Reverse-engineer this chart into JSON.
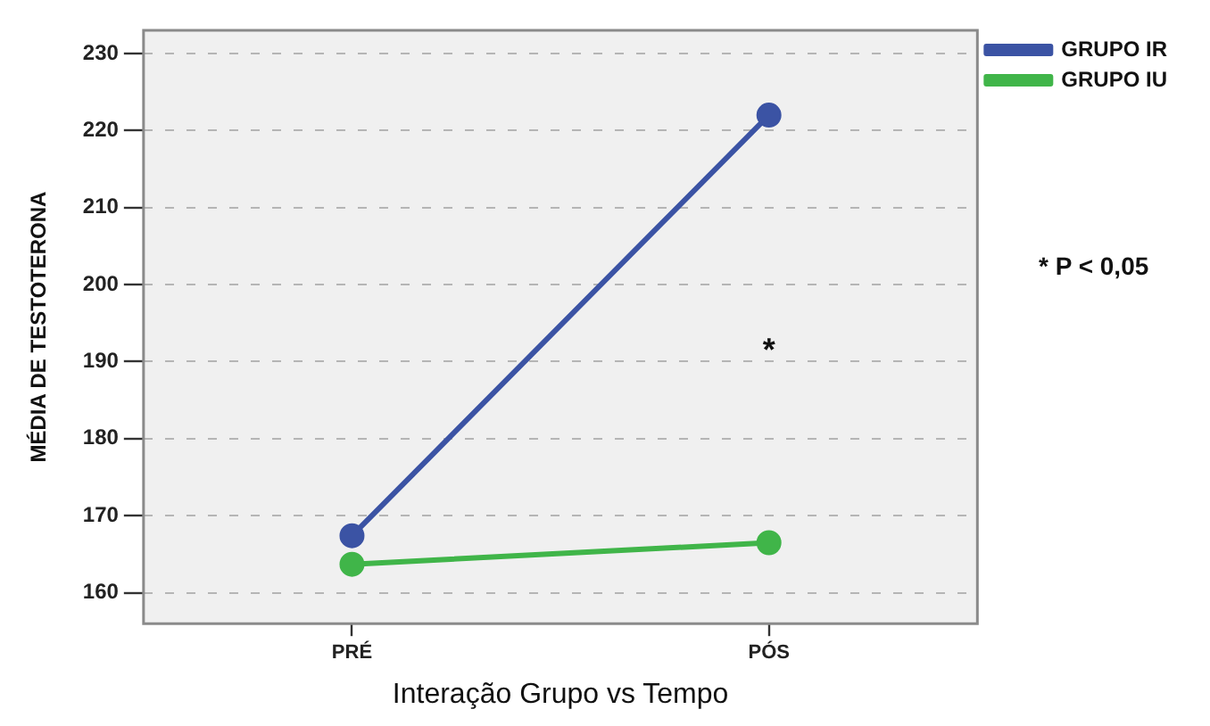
{
  "chart_data": {
    "type": "line",
    "xlabel": "Interação Grupo vs Tempo",
    "ylabel": "MÉDIA DE TESTOTERONA",
    "categories": [
      "PRÉ",
      "PÓS"
    ],
    "series": [
      {
        "name": "GRUPO IR",
        "color": "#3b53a4",
        "values": [
          167.4,
          222
        ]
      },
      {
        "name": "GRUPO IU",
        "color": "#40b549",
        "values": [
          163.7,
          166.5
        ]
      }
    ],
    "ylim": [
      156,
      233
    ],
    "yticks": [
      160,
      170,
      180,
      190,
      200,
      210,
      220,
      230
    ],
    "grid": "y",
    "legend": "top right",
    "marker": "circle",
    "line_style": "solid",
    "annotations": [
      "*",
      "* P < 0,05"
    ]
  }
}
